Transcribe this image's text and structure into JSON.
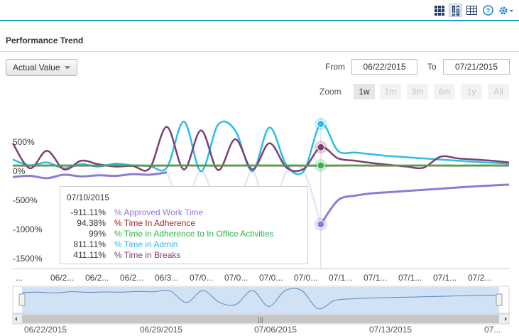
{
  "toolbar": {
    "icons": [
      "grid-view-icon",
      "sort-icon",
      "table-view-icon",
      "help-icon",
      "settings-icon"
    ]
  },
  "section_title": "Performance Trend",
  "metric_dropdown": {
    "value": "Actual Value"
  },
  "date_range": {
    "from_label": "From",
    "from_value": "06/22/2015",
    "to_label": "To",
    "to_value": "07/21/2015"
  },
  "zoom": {
    "label": "Zoom",
    "options": [
      "1w",
      "1m",
      "3m",
      "6m",
      "1y",
      "All"
    ],
    "active": "1w"
  },
  "chart_data": {
    "type": "line",
    "y_ticks": [
      "500%",
      "0%",
      "-500%",
      "-1000%",
      "-1500%"
    ],
    "ylim": [
      -1500,
      700
    ],
    "x_tick_labels": [
      "...",
      "06/2...",
      "06/2...",
      "06/2...",
      "06/3...",
      "07/0...",
      "07/0...",
      "07/0...",
      "07/0...",
      "07/1...",
      "07/1...",
      "07/1...",
      "07/1...",
      "07/2..."
    ],
    "x_dates": [
      "06/22",
      "06/23",
      "06/24",
      "06/25",
      "06/26",
      "06/27",
      "06/28",
      "06/29",
      "06/30",
      "07/01",
      "07/02",
      "07/03",
      "07/04",
      "07/05",
      "07/06",
      "07/07",
      "07/08",
      "07/09",
      "07/10",
      "07/11",
      "07/12",
      "07/13",
      "07/14",
      "07/15",
      "07/16",
      "07/17",
      "07/18",
      "07/19",
      "07/20",
      "07/21"
    ],
    "series": [
      {
        "name": "% Approved Work Time",
        "color": "#8f7ad6",
        "values": [
          -100,
          -80,
          -120,
          -60,
          -90,
          -70,
          -80,
          -50,
          -60,
          -20,
          -600,
          0,
          -600,
          -700,
          0,
          -800,
          0,
          0,
          -911.11,
          -500,
          -420,
          -380,
          -360,
          -340,
          -320,
          -300,
          -280,
          -260,
          -245,
          -230
        ]
      },
      {
        "name": "% Time In Adherence",
        "color": "#a0262e",
        "values": [
          96,
          95,
          97,
          96,
          95,
          96,
          97,
          96,
          95,
          96,
          97,
          96,
          95,
          96,
          97,
          96,
          95,
          96,
          94.38,
          96,
          97,
          96,
          95,
          96,
          97,
          96,
          95,
          96,
          97,
          96
        ]
      },
      {
        "name": "% Time in Adherence to In Office Activities",
        "color": "#2fb34a",
        "values": [
          98,
          99,
          98,
          99,
          99,
          98,
          99,
          99,
          98,
          99,
          99,
          98,
          99,
          99,
          98,
          99,
          99,
          98,
          99,
          99,
          98,
          99,
          99,
          98,
          99,
          99,
          98,
          99,
          99,
          98
        ]
      },
      {
        "name": "% Time in Admin",
        "color": "#2bbde8",
        "values": [
          200,
          100,
          150,
          50,
          120,
          80,
          130,
          100,
          90,
          60,
          850,
          0,
          800,
          700,
          0,
          750,
          100,
          0,
          811.11,
          350,
          320,
          290,
          260,
          240,
          220,
          200,
          180,
          160,
          145,
          130
        ]
      },
      {
        "name": "% Time in Breaks",
        "color": "#7d3f72",
        "values": [
          480,
          50,
          350,
          30,
          180,
          120,
          80,
          90,
          50,
          760,
          30,
          700,
          20,
          550,
          30,
          480,
          60,
          40,
          411.11,
          220,
          180,
          140,
          110,
          80,
          60,
          250,
          220,
          200,
          180,
          150
        ]
      }
    ],
    "tooltip": {
      "date": "07/10/2015",
      "rows": [
        {
          "value": "-911.11%",
          "name": "% Approved Work Time",
          "color": "#8f7ad6"
        },
        {
          "value": "94.38%",
          "name": "% Time In Adherence",
          "color": "#a0262e"
        },
        {
          "value": "99%",
          "name": "% Time in Adherence to In Office Activities",
          "color": "#2fb34a"
        },
        {
          "value": "811.11%",
          "name": "% Time in Admin",
          "color": "#2bbde8"
        },
        {
          "value": "411.11%",
          "name": "% Time in Breaks",
          "color": "#7d3f72"
        }
      ]
    }
  },
  "navigator": {
    "date_labels": [
      "06/22/2015",
      "06/29/2015",
      "07/06/2015",
      "07/13/2015",
      "07..."
    ]
  }
}
